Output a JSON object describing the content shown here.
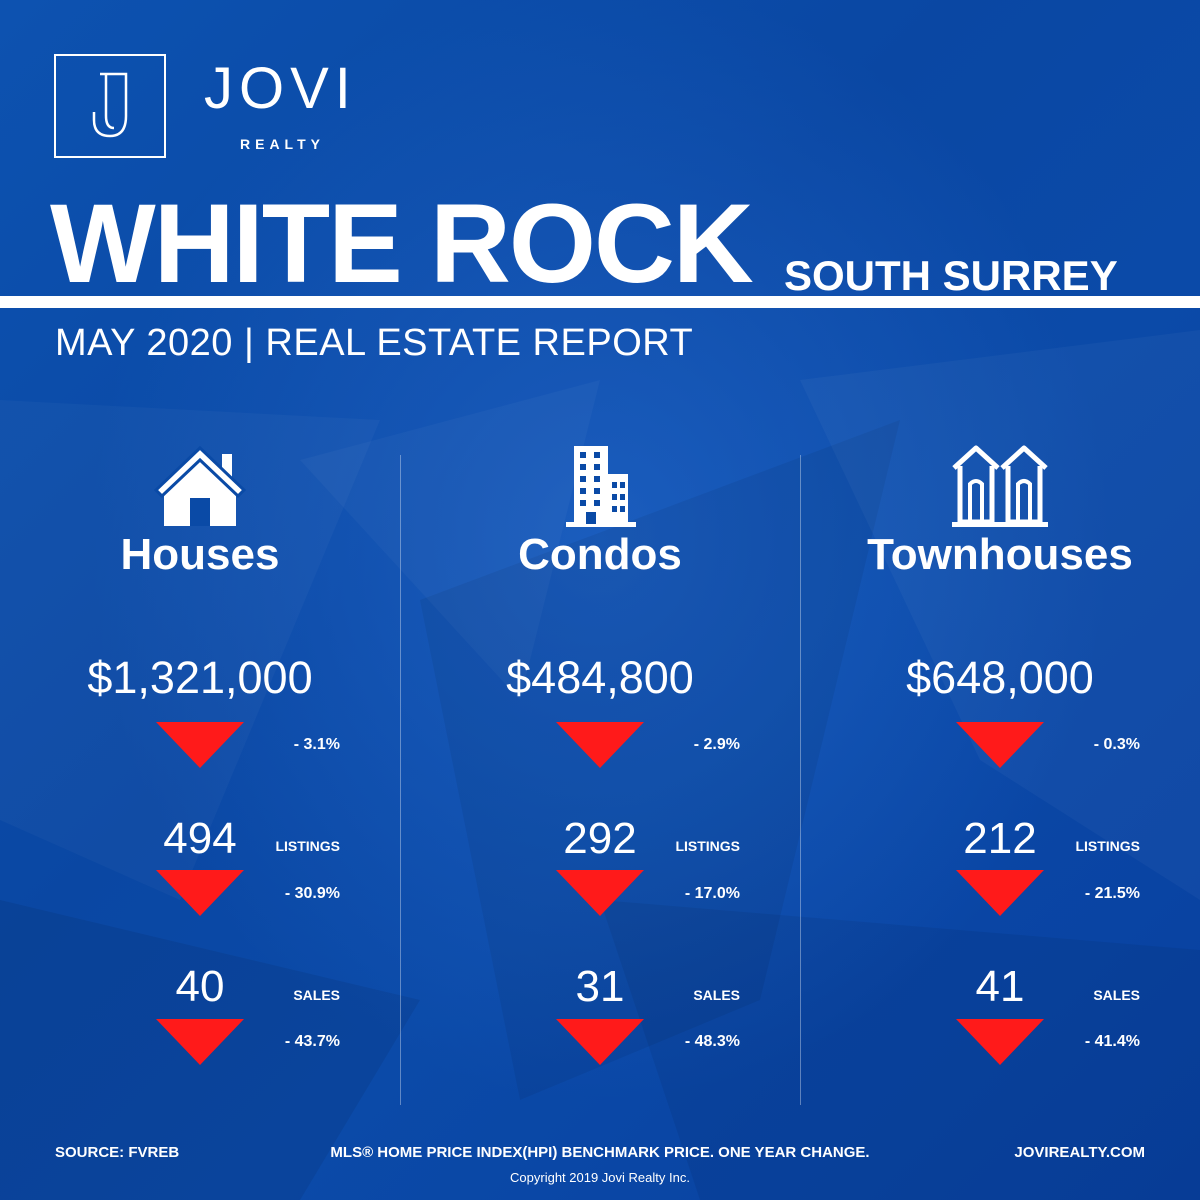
{
  "brand": {
    "name": "JOVI",
    "sub": "REALTY",
    "logo_letter": "J"
  },
  "title": "WHITE ROCK",
  "subtitle": "SOUTH SURREY",
  "report": "MAY 2020 | REAL ESTATE REPORT",
  "colors": {
    "background": "#0a4aa6",
    "down_arrow": "#ff1a1a",
    "text": "#ffffff"
  },
  "categories": [
    {
      "icon": "house-icon",
      "name": "Houses",
      "price": "$1,321,000",
      "price_change": "- 3.1%",
      "listings": "494",
      "listings_label": "LISTINGS",
      "listings_change": "- 30.9%",
      "sales": "40",
      "sales_label": "SALES",
      "sales_change": "- 43.7%"
    },
    {
      "icon": "building-icon",
      "name": "Condos",
      "price": "$484,800",
      "price_change": "- 2.9%",
      "listings": "292",
      "listings_label": "LISTINGS",
      "listings_change": "- 17.0%",
      "sales": "31",
      "sales_label": "SALES",
      "sales_change": "- 48.3%"
    },
    {
      "icon": "townhouse-icon",
      "name": "Townhouses",
      "price": "$648,000",
      "price_change": "- 0.3%",
      "listings": "212",
      "listings_label": "LISTINGS",
      "listings_change": "- 21.5%",
      "sales": "41",
      "sales_label": "SALES",
      "sales_change": "- 41.4%"
    }
  ],
  "footer": {
    "source": "SOURCE:  FVREB",
    "note": "MLS® HOME PRICE INDEX(HPI) BENCHMARK PRICE. ONE YEAR CHANGE.",
    "website": "JOVIREALTY.COM",
    "copyright": "Copyright 2019 Jovi Realty Inc."
  }
}
